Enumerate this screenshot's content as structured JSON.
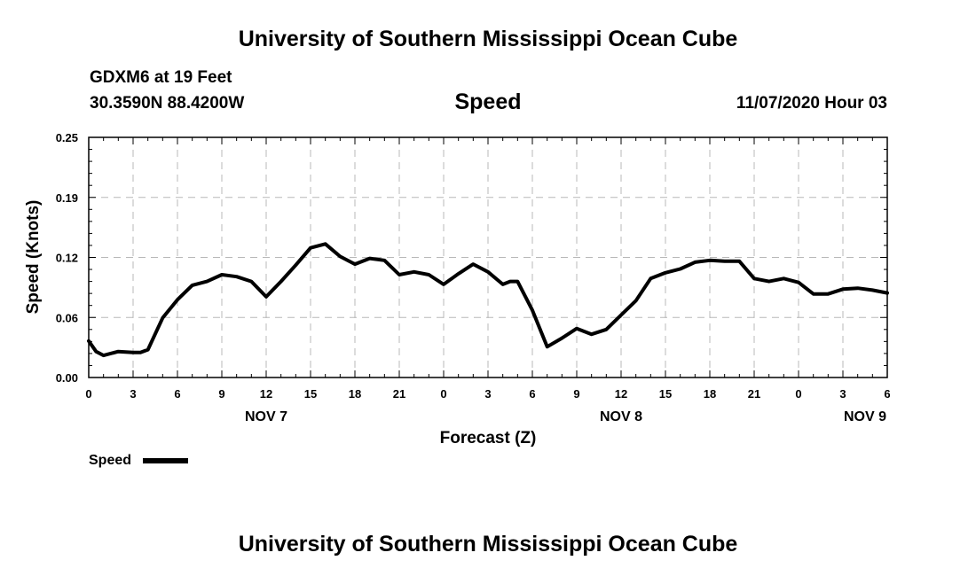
{
  "header": {
    "title": "University of Southern Mississippi Ocean Cube",
    "station": "GDXM6 at 19 Feet",
    "location": "30.3590N 88.4200W",
    "chart_title": "Speed",
    "date_label": "11/07/2020 Hour 03"
  },
  "footer": {
    "title": "University of Southern Mississippi Ocean Cube"
  },
  "chart_data": {
    "type": "line",
    "title": "Speed",
    "xlabel": "Forecast (Z)",
    "ylabel": "Speed (Knots)",
    "ylim": [
      0,
      0.25
    ],
    "yticks": [
      "0.00",
      "0.06",
      "0.12",
      "0.19",
      "0.25"
    ],
    "ytick_values": [
      0,
      0.0625,
      0.125,
      0.1875,
      0.25
    ],
    "xlim": [
      0,
      54
    ],
    "xtick_labels": [
      "0",
      "3",
      "6",
      "9",
      "12",
      "15",
      "18",
      "21",
      "0",
      "3",
      "6",
      "9",
      "12",
      "15",
      "18",
      "21",
      "0",
      "3",
      "6"
    ],
    "day_labels": [
      {
        "label": "NOV 7",
        "hour": 12
      },
      {
        "label": "NOV 8",
        "hour": 36
      },
      {
        "label": "NOV 9",
        "hour": 52.5
      }
    ],
    "grid": true,
    "legend": {
      "label": "Speed",
      "placement": "bottom-left"
    },
    "series": [
      {
        "name": "Speed",
        "color": "#000000",
        "x": [
          0,
          0.5,
          1,
          2,
          3,
          3.5,
          4,
          5,
          6,
          7,
          8,
          9,
          10,
          11,
          12,
          13,
          14,
          15,
          16,
          17,
          18,
          19,
          20,
          21,
          22,
          23,
          24,
          25,
          26,
          27,
          28,
          28.5,
          29,
          30,
          31,
          32,
          33,
          34,
          35,
          36,
          37,
          38,
          39,
          40,
          41,
          42,
          43,
          44,
          45,
          46,
          47,
          48,
          49,
          50,
          51,
          52,
          53,
          54
        ],
        "values": [
          0.038,
          0.027,
          0.023,
          0.027,
          0.026,
          0.026,
          0.029,
          0.062,
          0.081,
          0.096,
          0.1,
          0.107,
          0.105,
          0.1,
          0.084,
          0.1,
          0.117,
          0.135,
          0.139,
          0.126,
          0.118,
          0.124,
          0.122,
          0.107,
          0.11,
          0.107,
          0.097,
          0.108,
          0.118,
          0.11,
          0.097,
          0.1,
          0.1,
          0.07,
          0.032,
          0.041,
          0.051,
          0.045,
          0.05,
          0.065,
          0.08,
          0.103,
          0.109,
          0.113,
          0.12,
          0.122,
          0.121,
          0.121,
          0.103,
          0.1,
          0.103,
          0.099,
          0.087,
          0.087,
          0.092,
          0.093,
          0.091,
          0.088
        ]
      }
    ]
  }
}
